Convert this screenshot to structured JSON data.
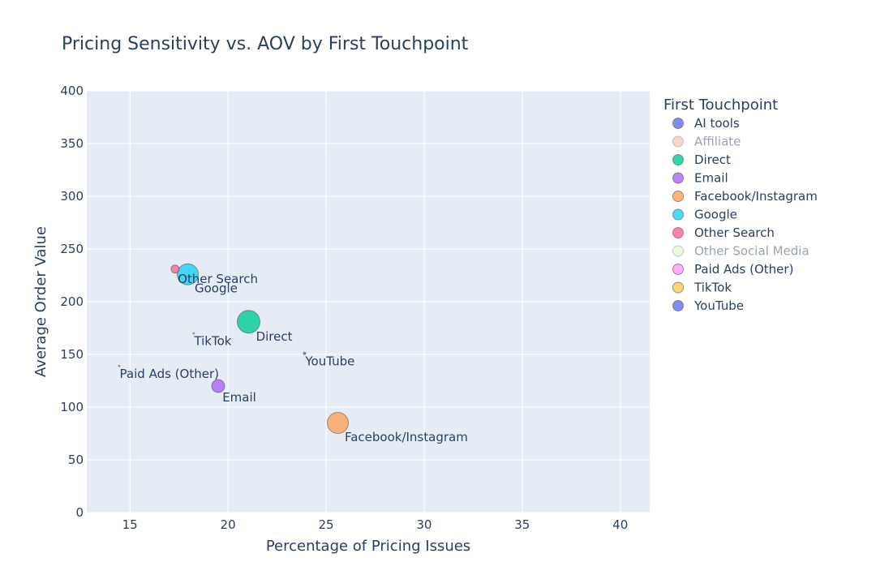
{
  "chart_data": {
    "type": "scatter",
    "title": "Pricing Sensitivity vs. AOV by First Touchpoint",
    "xlabel": "Percentage of Pricing Issues",
    "ylabel": "Average Order Value",
    "xlim": [
      12.8,
      41.5
    ],
    "ylim": [
      0,
      400
    ],
    "xticks": [
      15,
      20,
      25,
      30,
      35,
      40
    ],
    "yticks": [
      0,
      50,
      100,
      150,
      200,
      250,
      300,
      350,
      400
    ],
    "grid": true,
    "legend": {
      "title": "First Touchpoint",
      "placement": "right",
      "entries": [
        {
          "name": "AI tools",
          "color": "#636efa",
          "hidden": false
        },
        {
          "name": "Affiliate",
          "color": "#EF553B",
          "hidden": true
        },
        {
          "name": "Direct",
          "color": "#00cc96",
          "hidden": false
        },
        {
          "name": "Email",
          "color": "#ab63fa",
          "hidden": false
        },
        {
          "name": "Facebook/Instagram",
          "color": "#FFA15A",
          "hidden": false
        },
        {
          "name": "Google",
          "color": "#19d3f3",
          "hidden": false
        },
        {
          "name": "Other Search",
          "color": "#FF6692",
          "hidden": false
        },
        {
          "name": "Other Social Media",
          "color": "#B6E880",
          "hidden": true
        },
        {
          "name": "Paid Ads (Other)",
          "color": "#FF97FF",
          "hidden": false
        },
        {
          "name": "TikTok",
          "color": "#FECB52",
          "hidden": false
        },
        {
          "name": "YouTube",
          "color": "#636efa",
          "hidden": false
        }
      ]
    },
    "points": [
      {
        "name": "Other Search",
        "x": 17.3,
        "y": 231,
        "size": 5,
        "color": "#FF6692"
      },
      {
        "name": "Google",
        "x": 17.95,
        "y": 226,
        "size": 13,
        "color": "#19d3f3"
      },
      {
        "name": "Direct",
        "x": 21.05,
        "y": 181,
        "size": 14,
        "color": "#00cc96"
      },
      {
        "name": "TikTok",
        "x": 18.25,
        "y": 170,
        "size": 1,
        "color": "#FECB52"
      },
      {
        "name": "YouTube",
        "x": 23.9,
        "y": 151,
        "size": 1.5,
        "color": "#636efa"
      },
      {
        "name": "Paid Ads (Other)",
        "x": 14.45,
        "y": 139,
        "size": 1,
        "color": "#FF97FF"
      },
      {
        "name": "Email",
        "x": 19.5,
        "y": 120,
        "size": 8,
        "color": "#ab63fa"
      },
      {
        "name": "Facebook/Instagram",
        "x": 25.6,
        "y": 85,
        "size": 13,
        "color": "#FFA15A"
      }
    ]
  }
}
